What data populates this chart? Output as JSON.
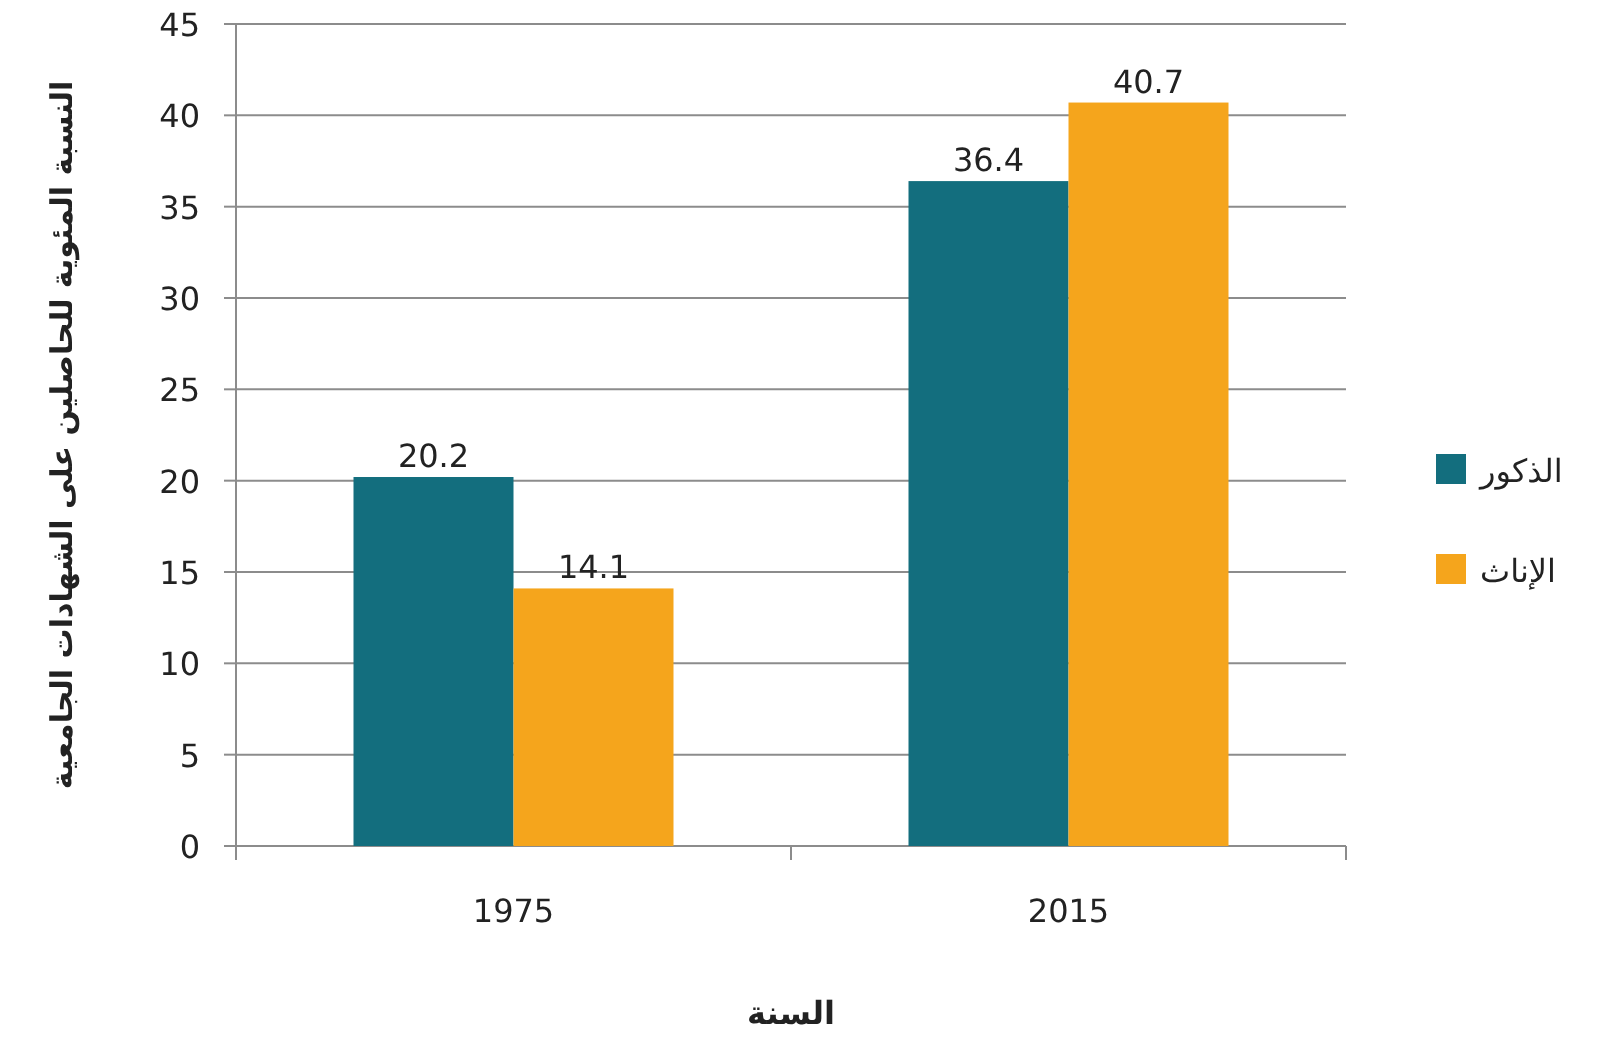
{
  "chart_data": {
    "type": "bar",
    "xlabel": "السنة",
    "ylabel": "النسبة المئوية للحاصلين على الشهادات الجامعية",
    "categories": [
      "1975",
      "2015"
    ],
    "series": [
      {
        "name": "الذكور",
        "color": "#136e7e",
        "values": [
          20.2,
          36.4
        ]
      },
      {
        "name": "الإناث",
        "color": "#f5a51c",
        "values": [
          14.1,
          40.7
        ]
      }
    ],
    "ylim": [
      0,
      45
    ],
    "yticks": [
      0,
      5,
      10,
      15,
      20,
      25,
      30,
      35,
      40,
      45
    ],
    "grid": "y",
    "legend": "right",
    "data_labels": true
  }
}
